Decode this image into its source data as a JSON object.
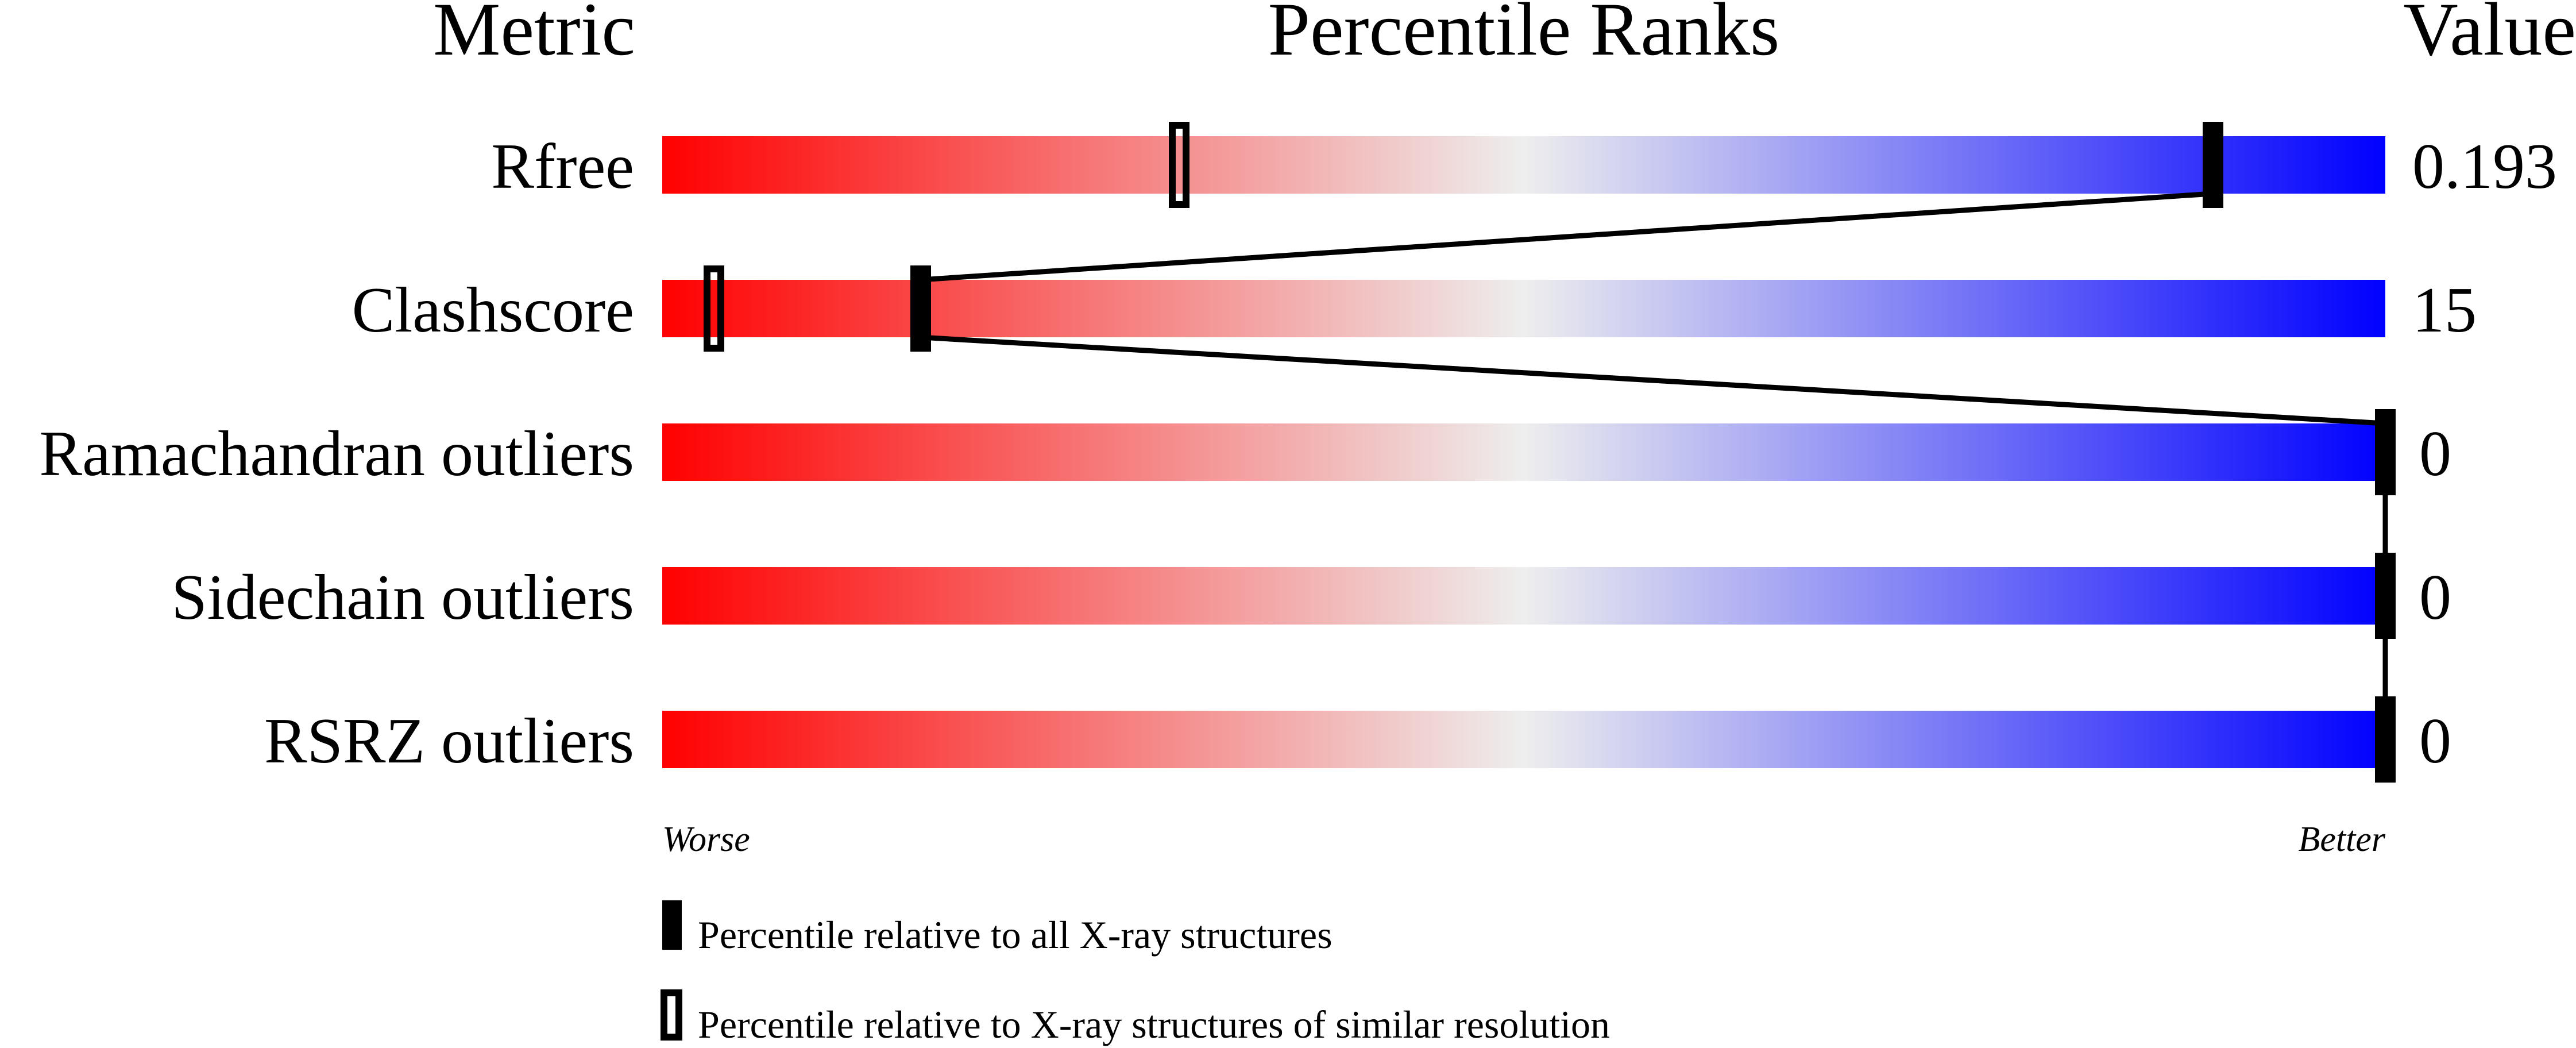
{
  "chart_data": {
    "type": "percentile-slider",
    "headers": {
      "metric": "Metric",
      "ranks": "Percentile Ranks",
      "value": "Value"
    },
    "xlim": [
      0,
      100
    ],
    "axis_words": {
      "worse": "Worse",
      "better": "Better"
    },
    "gradient_colors": {
      "worse": "#ff0000",
      "middle": "#eeeeee",
      "better": "#0000ff"
    },
    "metrics": [
      {
        "label": "Rfree",
        "value": "0.193",
        "percentile_all": 90,
        "percentile_similar": 30
      },
      {
        "label": "Clashscore",
        "value": "15",
        "percentile_all": 15,
        "percentile_similar": 3
      },
      {
        "label": "Ramachandran outliers",
        "value": "0",
        "percentile_all": 100,
        "percentile_similar": null
      },
      {
        "label": "Sidechain outliers",
        "value": "0",
        "percentile_all": 100,
        "percentile_similar": null
      },
      {
        "label": "RSRZ outliers",
        "value": "0",
        "percentile_all": 100,
        "percentile_similar": null
      }
    ],
    "legend": [
      {
        "marker": "filled",
        "label": "Percentile relative to all X-ray structures"
      },
      {
        "marker": "hollow",
        "label": "Percentile relative to X-ray structures of similar resolution"
      }
    ]
  }
}
